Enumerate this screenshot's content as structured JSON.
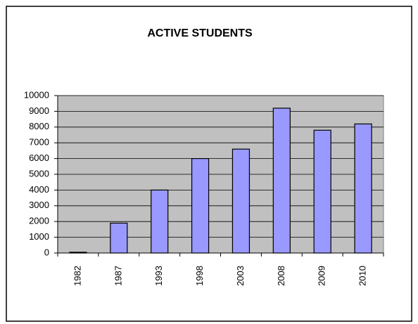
{
  "chart_data": {
    "type": "bar",
    "title": "ACTIVE STUDENTS",
    "categories": [
      "1982",
      "1987",
      "1993",
      "1998",
      "2003",
      "2008",
      "2009",
      "2010"
    ],
    "values": [
      50,
      1900,
      4000,
      6000,
      6600,
      9200,
      7800,
      8200
    ],
    "color": "#9999ff",
    "ylim": [
      0,
      10000
    ],
    "yticks": [
      0,
      1000,
      2000,
      3000,
      4000,
      5000,
      6000,
      7000,
      8000,
      9000,
      10000
    ],
    "grid": true
  }
}
